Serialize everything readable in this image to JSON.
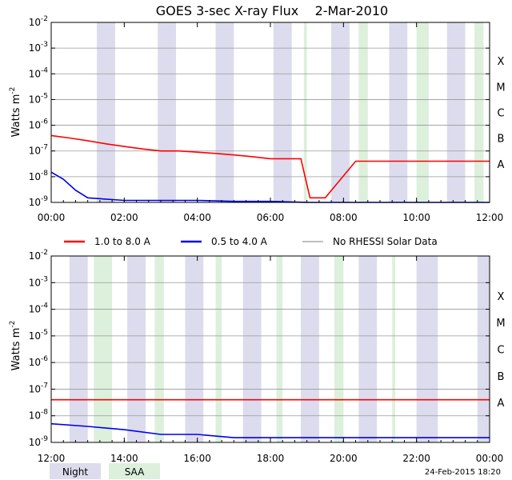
{
  "title": "GOES 3-sec X-ray Flux    2-Mar-2010",
  "ylabel": "Watts m",
  "ylabel_sup": "-2",
  "footer_date": "24-Feb-2015 18:20",
  "colors": {
    "night": "#dcdcee",
    "saa": "#dcf0dc",
    "long_channel": "#ff0000",
    "short_channel": "#0000ee",
    "no_data": "#999999",
    "axes": "#000000",
    "grid": "#999999"
  },
  "legend": [
    {
      "label": "1.0 to 8.0 A",
      "color": "#ff0000"
    },
    {
      "label": "0.5 to 4.0 A",
      "color": "#0000ee"
    },
    {
      "label": "No RHESSI Solar Data",
      "color": "#999999"
    }
  ],
  "band_legend": [
    {
      "label": "Night",
      "color": "#dcdcee"
    },
    {
      "label": "SAA",
      "color": "#dcf0dc"
    }
  ],
  "chart_data": [
    {
      "type": "line",
      "yscale": "log",
      "ylim": [
        1e-09,
        0.01
      ],
      "xlim": [
        "00:00",
        "12:00"
      ],
      "x_ticks": [
        "00:00",
        "02:00",
        "04:00",
        "06:00",
        "08:00",
        "10:00",
        "12:00"
      ],
      "y_ticks": [
        "10^-9",
        "10^-8",
        "10^-7",
        "10^-6",
        "10^-5",
        "10^-4",
        "10^-3",
        "10^-2"
      ],
      "flare_classes": [
        "A",
        "B",
        "C",
        "M",
        "X"
      ],
      "grid": true,
      "night_intervals": [
        [
          "01:15",
          "01:45"
        ],
        [
          "02:55",
          "03:25"
        ],
        [
          "04:30",
          "05:00"
        ],
        [
          "06:05",
          "06:35"
        ],
        [
          "07:40",
          "08:10"
        ],
        [
          "09:15",
          "09:45"
        ],
        [
          "10:50",
          "11:20"
        ]
      ],
      "saa_intervals": [
        [
          "06:55",
          "07:00"
        ],
        [
          "08:25",
          "08:40"
        ],
        [
          "10:00",
          "10:20"
        ],
        [
          "11:35",
          "11:50"
        ]
      ],
      "series": [
        {
          "name": "1.0 to 8.0 A",
          "color": "#ff0000",
          "x": [
            "00:00",
            "00:30",
            "01:00",
            "01:30",
            "02:00",
            "02:30",
            "03:00",
            "03:30",
            "04:00",
            "04:30",
            "05:00",
            "05:30",
            "06:00",
            "06:30",
            "06:50",
            "07:05",
            "07:20",
            "07:30",
            "08:20",
            "09:00",
            "09:30",
            "10:00",
            "10:30",
            "11:00",
            "11:30",
            "12:00"
          ],
          "y": [
            4e-07,
            3.2e-07,
            2.5e-07,
            1.9e-07,
            1.5e-07,
            1.2e-07,
            1e-07,
            1e-07,
            9e-08,
            8e-08,
            7e-08,
            6e-08,
            5e-08,
            5e-08,
            5e-08,
            1.5e-09,
            1.5e-09,
            1.5e-09,
            4e-08,
            4e-08,
            4e-08,
            4e-08,
            4e-08,
            4e-08,
            4e-08,
            4e-08
          ]
        },
        {
          "name": "0.5 to 4.0 A",
          "color": "#0000ee",
          "x": [
            "00:00",
            "00:20",
            "00:40",
            "01:00",
            "02:00",
            "03:00",
            "04:00",
            "05:00",
            "06:00",
            "07:00",
            "08:00",
            "09:00",
            "10:00",
            "11:00",
            "12:00"
          ],
          "y": [
            1.5e-08,
            8e-09,
            3e-09,
            1.5e-09,
            1.2e-09,
            1.2e-09,
            1.2e-09,
            1.1e-09,
            1.1e-09,
            1e-09,
            1e-09,
            1e-09,
            1e-09,
            1e-09,
            1e-09
          ]
        }
      ]
    },
    {
      "type": "line",
      "yscale": "log",
      "ylim": [
        1e-09,
        0.01
      ],
      "xlim": [
        "12:00",
        "00:00"
      ],
      "x_ticks": [
        "12:00",
        "14:00",
        "16:00",
        "18:00",
        "20:00",
        "22:00",
        "00:00"
      ],
      "y_ticks": [
        "10^-9",
        "10^-8",
        "10^-7",
        "10^-6",
        "10^-5",
        "10^-4",
        "10^-3",
        "10^-2"
      ],
      "flare_classes": [
        "A",
        "B",
        "C",
        "M",
        "X"
      ],
      "grid": true,
      "night_intervals": [
        [
          "12:30",
          "13:00"
        ],
        [
          "14:05",
          "14:35"
        ],
        [
          "15:40",
          "16:10"
        ],
        [
          "17:15",
          "17:45"
        ],
        [
          "18:50",
          "19:20"
        ],
        [
          "20:25",
          "20:55"
        ],
        [
          "22:00",
          "22:35"
        ],
        [
          "23:40",
          "24:00"
        ]
      ],
      "saa_intervals": [
        [
          "13:10",
          "13:40"
        ],
        [
          "14:50",
          "15:05"
        ],
        [
          "16:30",
          "16:40"
        ],
        [
          "18:10",
          "18:20"
        ],
        [
          "19:45",
          "20:00"
        ],
        [
          "21:20",
          "21:25"
        ]
      ],
      "series": [
        {
          "name": "1.0 to 8.0 A",
          "color": "#ff0000",
          "x": [
            "12:00",
            "13:00",
            "14:00",
            "15:00",
            "16:00",
            "17:00",
            "18:00",
            "18:50",
            "19:00",
            "20:00",
            "21:00",
            "22:00",
            "23:00",
            "24:00"
          ],
          "y": [
            4e-08,
            4e-08,
            4e-08,
            4e-08,
            4e-08,
            4e-08,
            4e-08,
            4e-08,
            4e-08,
            4e-08,
            4e-08,
            4e-08,
            4e-08,
            4e-08
          ]
        },
        {
          "name": "0.5 to 4.0 A",
          "color": "#0000ee",
          "x": [
            "12:00",
            "13:00",
            "14:00",
            "15:00",
            "16:00",
            "17:00",
            "18:00",
            "19:00",
            "20:00",
            "21:00",
            "22:00",
            "23:00",
            "24:00"
          ],
          "y": [
            5e-09,
            4e-09,
            3e-09,
            2e-09,
            2e-09,
            1.5e-09,
            1.5e-09,
            1.5e-09,
            1.5e-09,
            1.5e-09,
            1.5e-09,
            1.5e-09,
            1.5e-09
          ]
        }
      ]
    }
  ]
}
